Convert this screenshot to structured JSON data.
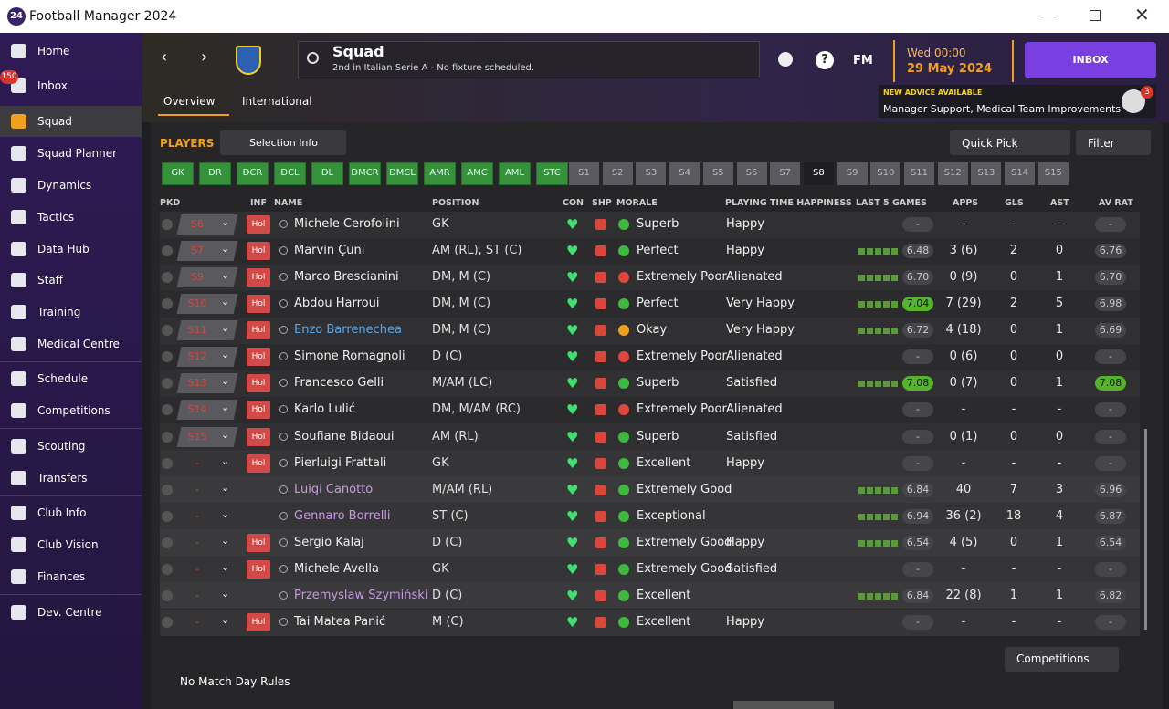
{
  "window": {
    "app_badge": "24",
    "title": "Football Manager 2024"
  },
  "sidebar": {
    "items": [
      "Home",
      "Inbox",
      "Squad",
      "Squad Planner",
      "Dynamics",
      "Tactics",
      "Data Hub",
      "Staff",
      "Training",
      "Medical Centre",
      "Schedule",
      "Competitions",
      "Scouting",
      "Transfers",
      "Club Info",
      "Club Vision",
      "Finances",
      "Dev. Centre"
    ],
    "inbox_badge": "150",
    "selected": 2
  },
  "header": {
    "title": "Squad",
    "subtitle": "2nd in Italian Serie A - No fixture scheduled.",
    "tabs": [
      "Overview",
      "International"
    ],
    "fm": "FM",
    "day_time": "Wed 00:00",
    "date": "29 May 2024",
    "inbox": "INBOX",
    "advice_title": "NEW ADVICE AVAILABLE",
    "advice_text": "Manager Support, Medical Team Improvements",
    "advice_badge": "3"
  },
  "toolbar": {
    "section": "PLAYERS",
    "selection": "Selection Info",
    "quick_pick": "Quick Pick",
    "filter": "Filter"
  },
  "position_filters": {
    "starting": [
      "GK",
      "DR",
      "DCR",
      "DCL",
      "DL",
      "DMCR",
      "DMCL",
      "AMR",
      "AMC",
      "AML",
      "STC"
    ],
    "subs": [
      "S1",
      "S2",
      "S3",
      "S4",
      "S5",
      "S6",
      "S7",
      "S8",
      "S9",
      "S10",
      "S11",
      "S12",
      "S13",
      "S14",
      "S15"
    ],
    "selected_sub": 7
  },
  "table": {
    "columns": [
      "PKD",
      "INF",
      "NAME",
      "POSITION",
      "CON",
      "SHP",
      "MORALE",
      "PLAYING TIME HAPPINESS",
      "LAST 5 GAMES",
      "APPS",
      "GLS",
      "AST",
      "AV RAT"
    ],
    "rows": [
      {
        "pkd": "S6",
        "inf": "Hol",
        "name": "Michele Cerofolini",
        "position": "GK",
        "morale": "Superb",
        "morale_color": "#3fb83f",
        "happiness": "Happy",
        "form": "-",
        "apps": "-",
        "gls": "-",
        "ast": "-",
        "avrat": "-"
      },
      {
        "pkd": "S7",
        "inf": "Hol",
        "name": "Marvin Çuni",
        "position": "AM (RL), ST (C)",
        "morale": "Perfect",
        "morale_color": "#3fb83f",
        "happiness": "Happy",
        "form": "6.48",
        "apps": "3 (6)",
        "gls": "2",
        "ast": "0",
        "avrat": "6.76"
      },
      {
        "pkd": "S9",
        "inf": "Hol",
        "name": "Marco Brescianini",
        "position": "DM, M (C)",
        "morale": "Extremely Poor",
        "morale_color": "#e0463c",
        "happiness": "Alienated",
        "form": "6.70",
        "apps": "0 (9)",
        "gls": "0",
        "ast": "1",
        "avrat": "6.70"
      },
      {
        "pkd": "S10",
        "inf": "Hol",
        "name": "Abdou Harroui",
        "position": "DM, M (C)",
        "morale": "Perfect",
        "morale_color": "#3fb83f",
        "happiness": "Very Happy",
        "form": "7.04",
        "form_color": "#55b52a",
        "apps": "7 (29)",
        "gls": "2",
        "ast": "5",
        "avrat": "6.98"
      },
      {
        "pkd": "S11",
        "inf": "Hol",
        "name": "Enzo Barrenechea",
        "name_color": "#5aa9e6",
        "position": "DM, M (C)",
        "morale": "Okay",
        "morale_color": "#f0a020",
        "happiness": "Very Happy",
        "form": "6.72",
        "apps": "4 (18)",
        "gls": "0",
        "ast": "1",
        "avrat": "6.69"
      },
      {
        "pkd": "S12",
        "inf": "Hol",
        "name": "Simone Romagnoli",
        "position": "D (C)",
        "morale": "Extremely Poor",
        "morale_color": "#e0463c",
        "happiness": "Alienated",
        "form": "-",
        "apps": "0 (6)",
        "gls": "0",
        "ast": "0",
        "avrat": "-"
      },
      {
        "pkd": "S13",
        "inf": "Hol",
        "name": "Francesco Gelli",
        "position": "M/AM (LC)",
        "morale": "Superb",
        "morale_color": "#3fb83f",
        "happiness": "Satisfied",
        "form": "7.08",
        "form_color": "#55b52a",
        "apps": "0 (7)",
        "gls": "0",
        "ast": "1",
        "avrat": "7.08",
        "avrat_color": "#55b52a"
      },
      {
        "pkd": "S14",
        "inf": "Hol",
        "name": "Karlo Lulić",
        "position": "DM, M/AM (RC)",
        "morale": "Extremely Poor",
        "morale_color": "#e0463c",
        "happiness": "Alienated",
        "form": "-",
        "apps": "-",
        "gls": "-",
        "ast": "-",
        "avrat": "-"
      },
      {
        "pkd": "S15",
        "inf": "Hol",
        "name": "Soufiane Bidaoui",
        "position": "AM (RL)",
        "morale": "Superb",
        "morale_color": "#3fb83f",
        "happiness": "Satisfied",
        "form": "-",
        "apps": "0 (1)",
        "gls": "0",
        "ast": "0",
        "avrat": "-"
      },
      {
        "pkd": "-",
        "inf": "Hol",
        "name": "Pierluigi Frattali",
        "position": "GK",
        "morale": "Excellent",
        "morale_color": "#3fb83f",
        "happiness": "Happy",
        "form": "-",
        "apps": "-",
        "gls": "-",
        "ast": "-",
        "avrat": "-"
      },
      {
        "pkd": "-",
        "name": "Luigi Canotto",
        "name_color": "#c89ae0",
        "position": "M/AM (RL)",
        "morale": "Extremely Good",
        "morale_color": "#3fb83f",
        "form": "6.84",
        "apps": "40",
        "gls": "7",
        "ast": "3",
        "avrat": "6.96"
      },
      {
        "pkd": "-",
        "name": "Gennaro Borrelli",
        "name_color": "#c89ae0",
        "position": "ST (C)",
        "morale": "Exceptional",
        "morale_color": "#3fb83f",
        "form": "6.94",
        "apps": "36 (2)",
        "gls": "18",
        "ast": "4",
        "avrat": "6.87"
      },
      {
        "pkd": "-",
        "inf": "Hol",
        "name": "Sergio Kalaj",
        "position": "D (C)",
        "morale": "Extremely Good",
        "morale_color": "#3fb83f",
        "happiness": "Happy",
        "form": "6.54",
        "apps": "4 (5)",
        "gls": "0",
        "ast": "1",
        "avrat": "6.54"
      },
      {
        "pkd": "-",
        "inf": "Hol",
        "name": "Michele Avella",
        "position": "GK",
        "morale": "Extremely Good",
        "morale_color": "#3fb83f",
        "happiness": "Satisfied",
        "form": "-",
        "apps": "-",
        "gls": "-",
        "ast": "-",
        "avrat": "-"
      },
      {
        "pkd": "-",
        "name": "Przemyslaw Szymiński",
        "name_color": "#c89ae0",
        "position": "D (C)",
        "morale": "Excellent",
        "morale_color": "#3fb83f",
        "form": "6.84",
        "apps": "22 (8)",
        "gls": "1",
        "ast": "1",
        "avrat": "6.82"
      },
      {
        "pkd": "-",
        "inf": "Hol",
        "name": "Tai Matea Panić",
        "position": "M (C)",
        "morale": "Excellent",
        "morale_color": "#3fb83f",
        "happiness": "Happy",
        "form": "-",
        "apps": "-",
        "gls": "-",
        "ast": "-",
        "avrat": "-"
      }
    ]
  },
  "footer": {
    "competitions": "Competitions",
    "rules": "No Match Day Rules"
  }
}
